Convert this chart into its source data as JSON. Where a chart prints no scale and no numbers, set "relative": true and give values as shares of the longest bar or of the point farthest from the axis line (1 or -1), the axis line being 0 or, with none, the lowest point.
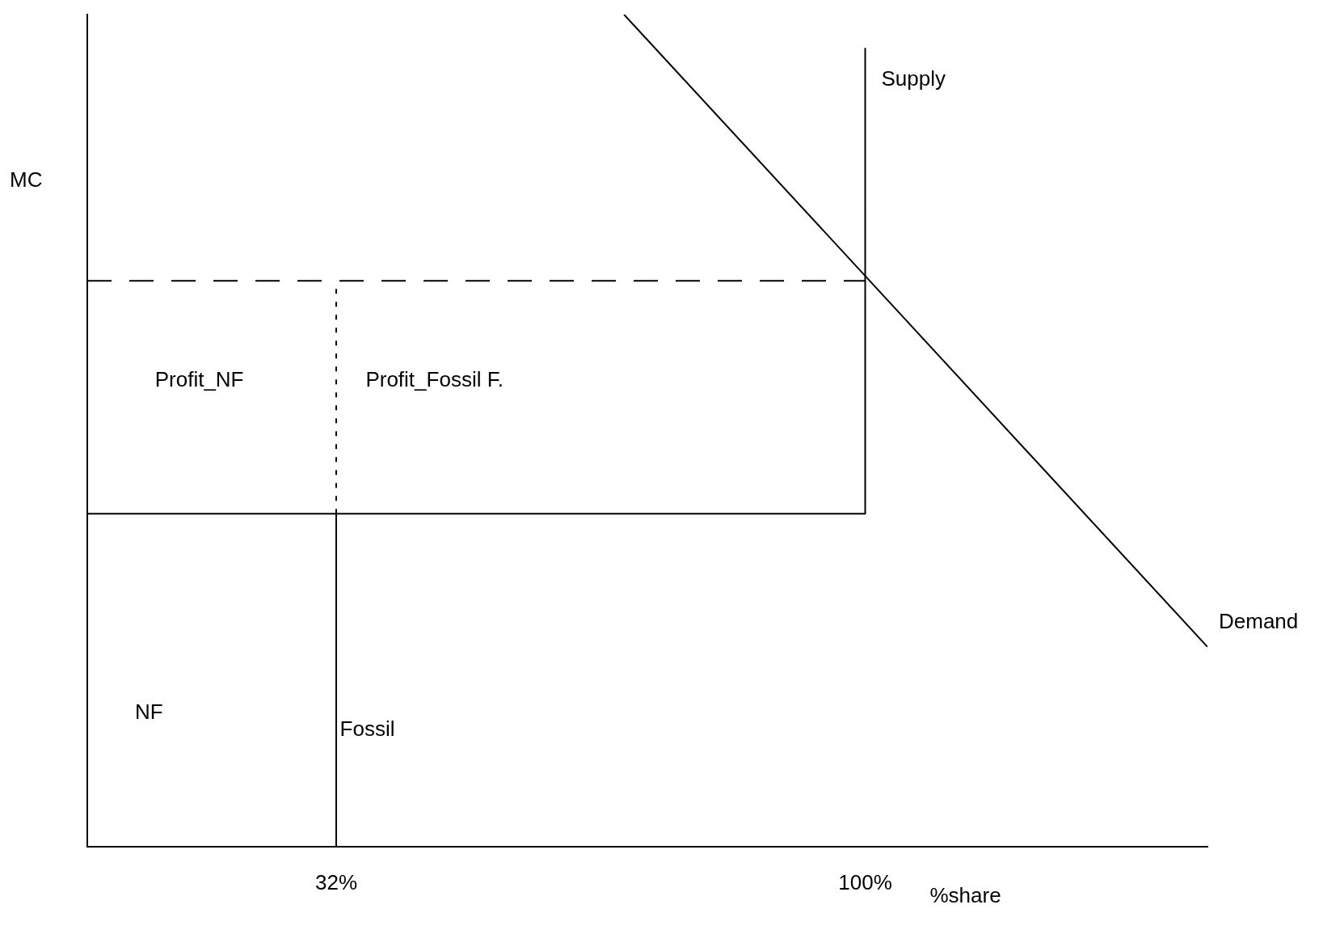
{
  "chart_data": {
    "type": "line",
    "relative": true,
    "xlabel": "%share",
    "ylabel": "MC",
    "xlim": [
      0,
      144
    ],
    "xticks": [
      {
        "value": 32,
        "label": "32%"
      },
      {
        "value": 100,
        "label": "100%"
      }
    ],
    "tick_labels": "x",
    "grid": false,
    "legend": false,
    "marker": "none",
    "series": [
      {
        "name": "Supply",
        "color": "#000000",
        "x": [
          0,
          100,
          100
        ],
        "values": [
          0.4,
          0.4,
          0.96
        ],
        "line_style": "solid"
      },
      {
        "name": "Demand",
        "color": "#000000",
        "x": [
          69,
          144
        ],
        "values": [
          1,
          0.24
        ],
        "line_style": "solid"
      },
      {
        "color": "#000000",
        "x": [
          0,
          100
        ],
        "values": [
          0.68,
          0.68
        ],
        "line_style": "dashed"
      },
      {
        "color": "#000000",
        "x": [
          32,
          32
        ],
        "values": [
          0,
          0.4
        ],
        "line_style": "solid"
      },
      {
        "color": "#000000",
        "x": [
          32,
          32
        ],
        "values": [
          0.4,
          0.68
        ],
        "line_style": "dotted"
      }
    ],
    "annotations": [
      "Profit_NF",
      "Profit_Fossil F.",
      "NF",
      "Fossil"
    ]
  }
}
